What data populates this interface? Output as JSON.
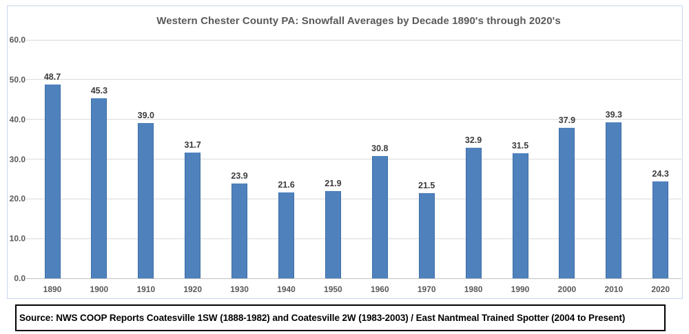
{
  "colors": {
    "background": "#ffffff",
    "bar_fill": "#4f81bd",
    "bar_edge": "#3c6da5",
    "gridline": "#dadada",
    "axis_line": "#c0c0c0",
    "chart_border": "#c7d7ea",
    "title": "#595959",
    "tick_label": "#595959",
    "value_label": "#3b3b3b",
    "source_text": "#000000",
    "source_border": "#000000"
  },
  "chart_data": {
    "type": "bar",
    "title": "Western Chester County PA: Snowfall Averages by Decade 1890's through 2020's",
    "categories": [
      "1890",
      "1900",
      "1910",
      "1920",
      "1930",
      "1940",
      "1950",
      "1960",
      "1970",
      "1980",
      "1990",
      "2000",
      "2010",
      "2020"
    ],
    "values": [
      48.7,
      45.3,
      39.0,
      31.7,
      23.9,
      21.6,
      21.9,
      30.8,
      21.5,
      32.9,
      31.5,
      37.9,
      39.3,
      24.3
    ],
    "xlabel": "",
    "ylabel": "",
    "ylim": [
      0,
      60
    ],
    "ytick_step": 10,
    "ytick_labels": [
      "0.0",
      "10.0",
      "20.0",
      "30.0",
      "40.0",
      "50.0",
      "60.0"
    ],
    "grid": true,
    "legend": false,
    "data_labels": true,
    "value_format": "one_decimal"
  },
  "source_box": {
    "text": "Source: NWS COOP Reports Coatesville 1SW (1888-1982) and Coatesville 2W (1983-2003) / East Nantmeal Trained Spotter (2004 to Present)"
  }
}
